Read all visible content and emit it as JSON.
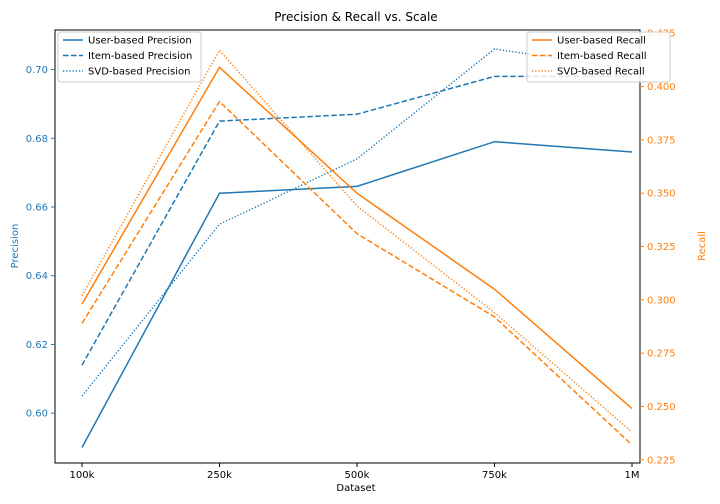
{
  "chart_data": {
    "type": "line",
    "title": "Precision & Recall vs. Scale",
    "xlabel": "Dataset",
    "categories": [
      "100k",
      "250k",
      "500k",
      "750k",
      "1M"
    ],
    "left_axis": {
      "label": "Precision",
      "ylim": [
        0.5855,
        0.7115
      ],
      "ticks": [
        "0.60",
        "0.62",
        "0.64",
        "0.66",
        "0.68",
        "0.70"
      ],
      "color": "#1f77b4"
    },
    "right_axis": {
      "label": "Recall",
      "ylim": [
        0.2235,
        0.4265
      ],
      "ticks": [
        "0.225",
        "0.250",
        "0.275",
        "0.300",
        "0.325",
        "0.350",
        "0.375",
        "0.400",
        "0.425"
      ],
      "color": "#ff7f0e"
    },
    "precision_series": [
      {
        "name": "User-based Precision",
        "style": "solid",
        "values": [
          0.59,
          0.664,
          0.666,
          0.679,
          0.676
        ]
      },
      {
        "name": "Item-based Precision",
        "style": "dashed",
        "values": [
          0.614,
          0.685,
          0.687,
          0.698,
          0.698
        ]
      },
      {
        "name": "SVD-based Precision",
        "style": "dotted",
        "values": [
          0.605,
          0.655,
          0.674,
          0.706,
          0.7
        ]
      }
    ],
    "recall_series": [
      {
        "name": "User-based Recall",
        "style": "solid",
        "values": [
          0.298,
          0.409,
          0.35,
          0.305,
          0.249
        ]
      },
      {
        "name": "Item-based Recall",
        "style": "dashed",
        "values": [
          0.289,
          0.393,
          0.331,
          0.292,
          0.232
        ]
      },
      {
        "name": "SVD-based Recall",
        "style": "dotted",
        "values": [
          0.302,
          0.417,
          0.344,
          0.294,
          0.238
        ]
      }
    ],
    "grid": false,
    "legends": {
      "precision": "top-left",
      "recall": "top-right"
    }
  }
}
